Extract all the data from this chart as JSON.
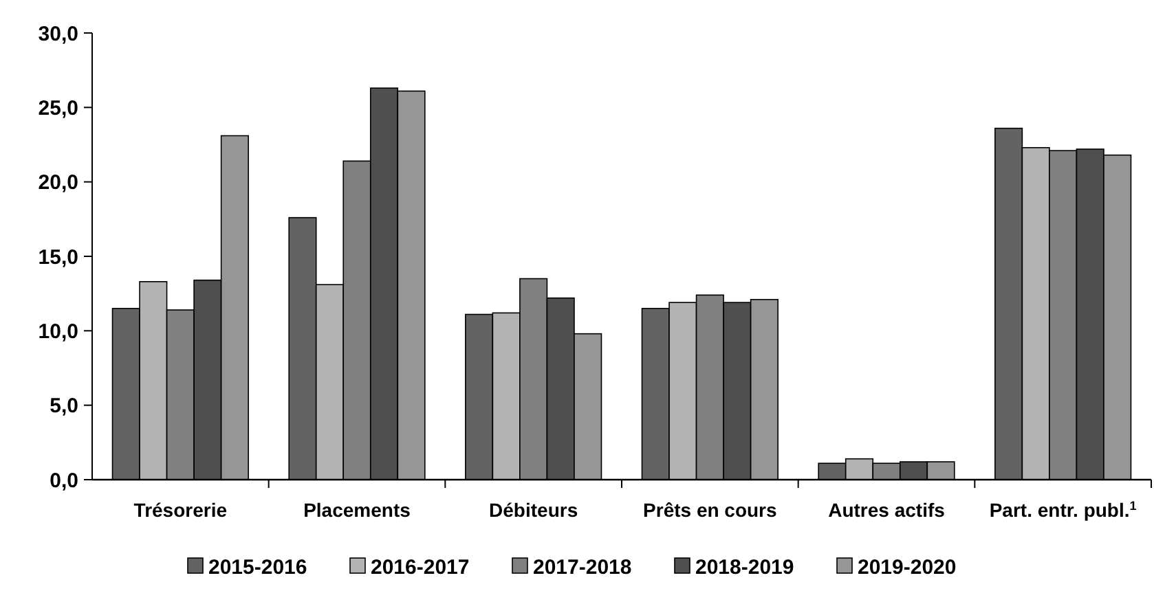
{
  "chart_data": {
    "type": "bar",
    "categories": [
      "Trésorerie",
      "Placements",
      "Débiteurs",
      "Prêts en cours",
      "Autres actifs",
      "Part. entr. publ.$^{1}$"
    ],
    "series": [
      {
        "name": "2015-2016",
        "color": "#636363",
        "values": [
          11.5,
          17.6,
          11.1,
          11.5,
          1.1,
          23.6
        ]
      },
      {
        "name": "2016-2017",
        "color": "#b3b3b3",
        "values": [
          13.3,
          13.1,
          11.2,
          11.9,
          1.4,
          22.3
        ]
      },
      {
        "name": "2017-2018",
        "color": "#808080",
        "values": [
          11.4,
          21.4,
          13.5,
          12.4,
          1.1,
          22.1
        ]
      },
      {
        "name": "2018-2019",
        "color": "#4f4f4f",
        "values": [
          13.4,
          26.3,
          12.2,
          11.9,
          1.2,
          22.2
        ]
      },
      {
        "name": "2019-2020",
        "color": "#969696",
        "values": [
          23.1,
          26.1,
          9.8,
          12.1,
          1.2,
          21.8
        ]
      }
    ],
    "ylim": [
      0,
      30
    ],
    "yticks": [
      {
        "value": 0,
        "label": "0,0"
      },
      {
        "value": 5,
        "label": "5,0"
      },
      {
        "value": 10,
        "label": "10,0"
      },
      {
        "value": 15,
        "label": "15,0"
      },
      {
        "value": 20,
        "label": "20,0"
      },
      {
        "value": 25,
        "label": "25,0"
      },
      {
        "value": 30,
        "label": "30,0"
      }
    ],
    "grid": false,
    "legend": "bottom"
  }
}
